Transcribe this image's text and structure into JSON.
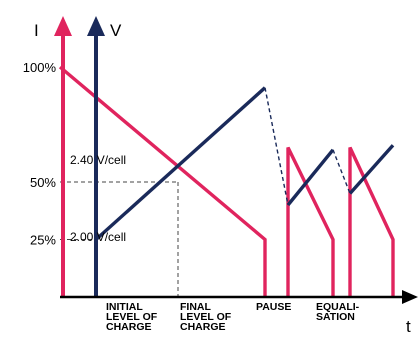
{
  "chart_data": {
    "type": "line",
    "title": "",
    "axes": {
      "current_label": "I",
      "voltage_label": "V",
      "time_label": "t",
      "current_ticks": [
        "100%",
        "50%",
        "25%"
      ],
      "current_tick_values": [
        100,
        50,
        25
      ]
    },
    "annotations": [
      "2.40 V/cell",
      "2.00 V/cell"
    ],
    "phases": [
      "INITIAL\nLEVEL OF\nCHARGE",
      "FINAL\nLEVEL OF\nCHARGE",
      "PAUSE",
      "EQUALI-\nSATION"
    ],
    "series": [
      {
        "name": "",
        "color": "#e0245e",
        "style": "solid",
        "points": [
          [
            0,
            100
          ],
          [
            205,
            25
          ],
          [
            205,
            0
          ]
        ]
      },
      {
        "name": "",
        "color": "#e0245e",
        "style": "solid",
        "points": [
          [
            228,
            0
          ],
          [
            228,
            65
          ],
          [
            273,
            25
          ],
          [
            273,
            0
          ]
        ]
      },
      {
        "name": "",
        "color": "#e0245e",
        "style": "solid",
        "points": [
          [
            290,
            0
          ],
          [
            290,
            65
          ],
          [
            333,
            25
          ],
          [
            333,
            0
          ]
        ]
      },
      {
        "name": "",
        "color": "#1a2a5a",
        "style": "solid",
        "points": [
          [
            36,
            25
          ],
          [
            205,
            91
          ]
        ]
      },
      {
        "name": "",
        "color": "#1a2a5a",
        "style": "dashed",
        "points": [
          [
            205,
            91
          ],
          [
            228,
            40
          ]
        ]
      },
      {
        "name": "",
        "color": "#1a2a5a",
        "style": "solid",
        "points": [
          [
            228,
            40
          ],
          [
            273,
            64
          ]
        ]
      },
      {
        "name": "",
        "color": "#1a2a5a",
        "style": "dashed",
        "points": [
          [
            273,
            64
          ],
          [
            290,
            45
          ]
        ]
      },
      {
        "name": "",
        "color": "#1a2a5a",
        "style": "solid",
        "points": [
          [
            290,
            45
          ],
          [
            333,
            66
          ]
        ]
      }
    ],
    "reference_lines": [
      {
        "y": 50,
        "x_to": 118
      },
      {
        "y": 25,
        "x_to": 36
      }
    ],
    "grid": false
  },
  "colors": {
    "current": "#e0245e",
    "voltage": "#1a2a5a",
    "axis": "#000000"
  }
}
